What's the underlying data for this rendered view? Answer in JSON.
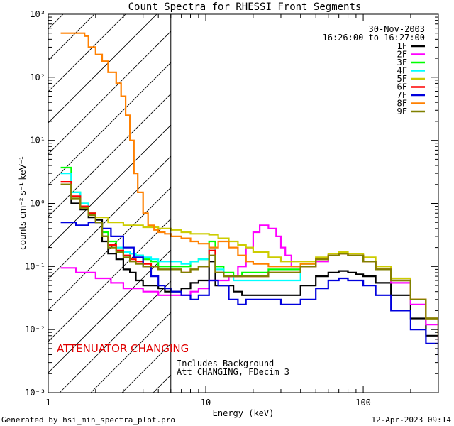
{
  "chart_data": {
    "type": "line",
    "title": "Count Spectra for RHESSI Front Segments",
    "xlabel": "Energy (keV)",
    "ylabel": "counts cm⁻² s⁻¹ keV⁻¹",
    "xscale": "log",
    "yscale": "log",
    "xlim": [
      1,
      300
    ],
    "ylim": [
      0.001,
      1000
    ],
    "x_tick_labels": [
      "1",
      "10",
      "100"
    ],
    "y_tick_labels": [
      "10⁻³",
      "10⁻²",
      "10⁻¹",
      "10⁰",
      "10¹",
      "10²",
      "10³"
    ],
    "date": "30-Nov-2003",
    "time_range": "16:26:00 to 16:27:00",
    "annotation_red": "ATTENUATOR CHANGING",
    "annotation_note1": "Includes Background",
    "annotation_note2": "Att CHANGING, FDecim 3",
    "shaded_region": {
      "x_from": 1,
      "x_to": 6,
      "style": "diagonal hatch"
    },
    "vertical_line_x": 6,
    "footer_left": "Generated by hsi_min_spectra_plot.pro",
    "footer_right": "12-Apr-2023 09:14",
    "series": [
      {
        "name": "1F",
        "color": "#000000",
        "x": [
          1.2,
          1.4,
          1.6,
          1.8,
          2.0,
          2.2,
          2.4,
          2.7,
          3.0,
          3.3,
          3.6,
          4.0,
          4.5,
          5.0,
          5.5,
          6.0,
          7.0,
          8.0,
          9.0,
          10.5,
          11.5,
          13,
          15,
          17,
          20,
          25,
          30,
          40,
          50,
          60,
          70,
          80,
          90,
          100,
          120,
          150,
          200,
          250,
          300
        ],
        "y": [
          2.0,
          1.0,
          0.8,
          0.6,
          0.55,
          0.25,
          0.16,
          0.13,
          0.09,
          0.08,
          0.06,
          0.05,
          0.05,
          0.045,
          0.04,
          0.04,
          0.045,
          0.055,
          0.06,
          0.12,
          0.05,
          0.05,
          0.04,
          0.035,
          0.035,
          0.035,
          0.035,
          0.05,
          0.07,
          0.08,
          0.085,
          0.08,
          0.075,
          0.07,
          0.055,
          0.035,
          0.015,
          0.008,
          0.004
        ]
      },
      {
        "name": "2F",
        "color": "#ff00ff",
        "x": [
          1.2,
          1.5,
          2.0,
          2.5,
          3.0,
          4.0,
          5.0,
          6.0,
          7.0,
          8.0,
          9.0,
          10.5,
          12,
          14,
          16,
          18,
          20,
          22,
          25,
          28,
          30,
          32,
          35,
          40,
          50,
          60,
          70,
          80,
          100,
          120,
          150,
          200,
          250,
          300
        ],
        "y": [
          0.095,
          0.08,
          0.065,
          0.055,
          0.045,
          0.04,
          0.035,
          0.035,
          0.035,
          0.04,
          0.045,
          0.06,
          0.06,
          0.07,
          0.1,
          0.2,
          0.35,
          0.45,
          0.4,
          0.3,
          0.2,
          0.15,
          0.1,
          0.1,
          0.12,
          0.15,
          0.16,
          0.15,
          0.12,
          0.09,
          0.055,
          0.025,
          0.012,
          0.006
        ]
      },
      {
        "name": "3F",
        "color": "#00ff00",
        "x": [
          1.2,
          1.4,
          1.6,
          1.8,
          2.0,
          2.2,
          2.4,
          2.7,
          3.0,
          3.3,
          3.6,
          4.0,
          4.5,
          5.0,
          5.5,
          6.0,
          7.0,
          8.0,
          9.0,
          10.5,
          11.5,
          13,
          15,
          17,
          20,
          25,
          30,
          40,
          50,
          60,
          70,
          80,
          100,
          120,
          150,
          200,
          250,
          300
        ],
        "y": [
          3.7,
          1.5,
          1.0,
          0.7,
          0.5,
          0.35,
          0.25,
          0.2,
          0.17,
          0.16,
          0.15,
          0.13,
          0.12,
          0.1,
          0.1,
          0.1,
          0.1,
          0.12,
          0.13,
          0.25,
          0.1,
          0.08,
          0.07,
          0.08,
          0.08,
          0.09,
          0.09,
          0.11,
          0.13,
          0.15,
          0.16,
          0.15,
          0.12,
          0.09,
          0.06,
          0.03,
          0.015,
          0.008
        ]
      },
      {
        "name": "4F",
        "color": "#00ffff",
        "x": [
          1.2,
          1.4,
          1.6,
          1.8,
          2.0,
          2.2,
          2.4,
          2.7,
          3.0,
          3.3,
          3.6,
          4.0,
          4.5,
          5.0,
          5.5,
          6.0,
          7.0,
          8.0,
          9.0,
          10.5,
          11.5,
          13,
          15,
          17,
          20,
          25,
          30,
          40,
          50,
          60,
          70,
          80,
          100,
          120,
          150,
          200,
          250,
          300
        ],
        "y": [
          3.0,
          1.5,
          1.0,
          0.7,
          0.5,
          0.3,
          0.22,
          0.2,
          0.17,
          0.16,
          0.15,
          0.14,
          0.13,
          0.12,
          0.12,
          0.12,
          0.11,
          0.12,
          0.13,
          0.2,
          0.09,
          0.07,
          0.06,
          0.06,
          0.06,
          0.06,
          0.06,
          0.1,
          0.13,
          0.15,
          0.16,
          0.15,
          0.12,
          0.09,
          0.06,
          0.03,
          0.015,
          0.008
        ]
      },
      {
        "name": "5F",
        "color": "#cccc00",
        "x": [
          1.2,
          1.4,
          1.6,
          1.8,
          2.0,
          2.4,
          3.0,
          4.0,
          5.0,
          6.0,
          7.0,
          8.0,
          9.0,
          10.5,
          12,
          14,
          16,
          18,
          20,
          25,
          30,
          40,
          50,
          60,
          70,
          80,
          100,
          120,
          150,
          200,
          250,
          300
        ],
        "y": [
          2.0,
          1.2,
          0.9,
          0.7,
          0.6,
          0.5,
          0.45,
          0.42,
          0.4,
          0.38,
          0.35,
          0.33,
          0.33,
          0.32,
          0.28,
          0.25,
          0.22,
          0.2,
          0.17,
          0.14,
          0.12,
          0.12,
          0.14,
          0.16,
          0.17,
          0.16,
          0.14,
          0.1,
          0.065,
          0.03,
          0.015,
          0.008
        ]
      },
      {
        "name": "6F",
        "color": "#ff0000",
        "x": [
          1.2,
          1.4,
          1.6,
          1.8,
          2.0,
          2.2,
          2.4,
          2.7,
          3.0,
          3.3,
          3.6,
          4.0,
          4.5,
          5.0,
          5.5,
          6.0,
          7.0,
          8.0,
          9.0,
          10.5,
          11.5,
          13,
          15,
          17,
          20,
          25,
          30,
          40,
          50,
          60,
          70,
          80,
          100,
          120,
          150,
          200,
          250,
          300
        ],
        "y": [
          2.2,
          1.3,
          0.9,
          0.7,
          0.5,
          0.3,
          0.22,
          0.18,
          0.15,
          0.13,
          0.12,
          0.11,
          0.1,
          0.09,
          0.09,
          0.09,
          0.08,
          0.09,
          0.1,
          0.18,
          0.08,
          0.07,
          0.07,
          0.07,
          0.07,
          0.08,
          0.08,
          0.1,
          0.13,
          0.15,
          0.16,
          0.15,
          0.12,
          0.09,
          0.06,
          0.03,
          0.015,
          0.008
        ]
      },
      {
        "name": "7F",
        "color": "#0000dd",
        "x": [
          1.2,
          1.5,
          1.8,
          2.0,
          2.2,
          2.5,
          3.0,
          3.5,
          4.0,
          4.5,
          5.0,
          5.5,
          6.0,
          7.0,
          8.0,
          9.0,
          10.5,
          12,
          14,
          16,
          18,
          20,
          25,
          30,
          40,
          50,
          60,
          70,
          80,
          100,
          120,
          150,
          200,
          250,
          300
        ],
        "y": [
          0.5,
          0.45,
          0.5,
          0.5,
          0.4,
          0.3,
          0.2,
          0.14,
          0.1,
          0.07,
          0.05,
          0.045,
          0.04,
          0.035,
          0.03,
          0.035,
          0.06,
          0.05,
          0.03,
          0.025,
          0.03,
          0.03,
          0.03,
          0.025,
          0.03,
          0.045,
          0.06,
          0.065,
          0.06,
          0.05,
          0.035,
          0.02,
          0.01,
          0.006,
          0.003
        ]
      },
      {
        "name": "8F",
        "color": "#ff8000",
        "x": [
          1.2,
          1.5,
          1.7,
          1.8,
          2.0,
          2.2,
          2.4,
          2.7,
          2.9,
          3.1,
          3.3,
          3.5,
          3.7,
          4.0,
          4.3,
          4.7,
          5.0,
          5.5,
          6.0,
          7.0,
          8.0,
          9.0,
          10.5,
          12,
          14,
          16,
          18,
          20,
          25,
          30,
          40,
          50,
          60,
          70,
          80,
          100,
          120,
          150,
          200,
          250,
          300
        ],
        "y": [
          500,
          500,
          450,
          300,
          230,
          180,
          120,
          80,
          50,
          25,
          10,
          3,
          1.5,
          0.7,
          0.45,
          0.38,
          0.35,
          0.33,
          0.3,
          0.28,
          0.25,
          0.23,
          0.2,
          0.25,
          0.2,
          0.15,
          0.12,
          0.11,
          0.1,
          0.1,
          0.11,
          0.13,
          0.15,
          0.16,
          0.15,
          0.12,
          0.09,
          0.06,
          0.03,
          0.015,
          0.007
        ]
      },
      {
        "name": "9F",
        "color": "#808000",
        "x": [
          1.2,
          1.4,
          1.6,
          1.8,
          2.0,
          2.2,
          2.4,
          2.7,
          3.0,
          3.3,
          3.6,
          4.0,
          4.5,
          5.0,
          5.5,
          6.0,
          7.0,
          8.0,
          9.0,
          10.5,
          11.5,
          13,
          15,
          17,
          20,
          25,
          30,
          40,
          50,
          60,
          70,
          80,
          100,
          120,
          150,
          200,
          250,
          300
        ],
        "y": [
          2.0,
          1.2,
          0.85,
          0.65,
          0.5,
          0.3,
          0.2,
          0.17,
          0.14,
          0.12,
          0.11,
          0.1,
          0.1,
          0.09,
          0.09,
          0.09,
          0.08,
          0.09,
          0.1,
          0.15,
          0.08,
          0.07,
          0.07,
          0.07,
          0.07,
          0.08,
          0.08,
          0.1,
          0.13,
          0.15,
          0.16,
          0.15,
          0.12,
          0.09,
          0.06,
          0.03,
          0.015,
          0.008
        ]
      }
    ]
  }
}
